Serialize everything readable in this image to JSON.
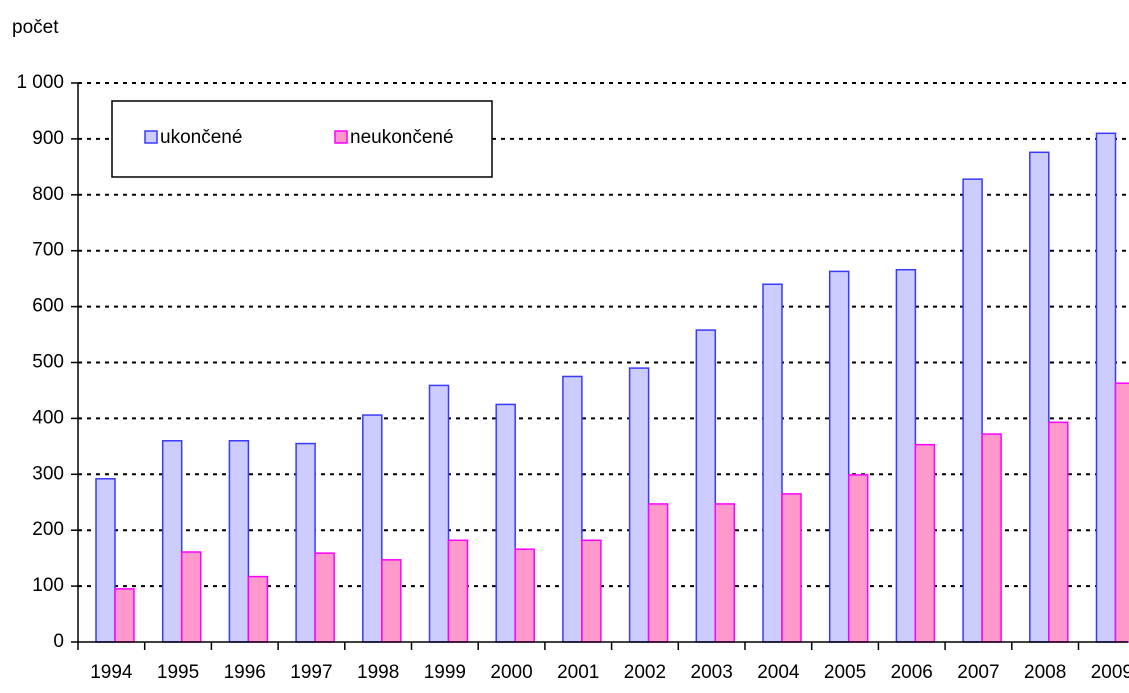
{
  "chart_data": {
    "type": "bar",
    "ylabel": "počet",
    "categories": [
      "1994",
      "1995",
      "1996",
      "1997",
      "1998",
      "1999",
      "2000",
      "2001",
      "2002",
      "2003",
      "2004",
      "2005",
      "2006",
      "2007",
      "2008",
      "2009"
    ],
    "series": [
      {
        "name": "ukončené",
        "color": "#ccccff",
        "edge": "#3a3aff",
        "values": [
          292,
          360,
          360,
          355,
          406,
          459,
          425,
          475,
          490,
          558,
          640,
          663,
          666,
          828,
          876,
          910
        ]
      },
      {
        "name": "neukončené",
        "color": "#ff99cc",
        "edge": "#ff00ff",
        "values": [
          95,
          161,
          117,
          159,
          147,
          182,
          166,
          182,
          247,
          247,
          265,
          299,
          353,
          372,
          393,
          463
        ]
      }
    ],
    "ylim": [
      0,
      1000
    ],
    "yticks": [
      0,
      100,
      200,
      300,
      400,
      500,
      600,
      700,
      800,
      900,
      {
        "value": 1000,
        "label": "1 000"
      }
    ],
    "grid": true
  }
}
